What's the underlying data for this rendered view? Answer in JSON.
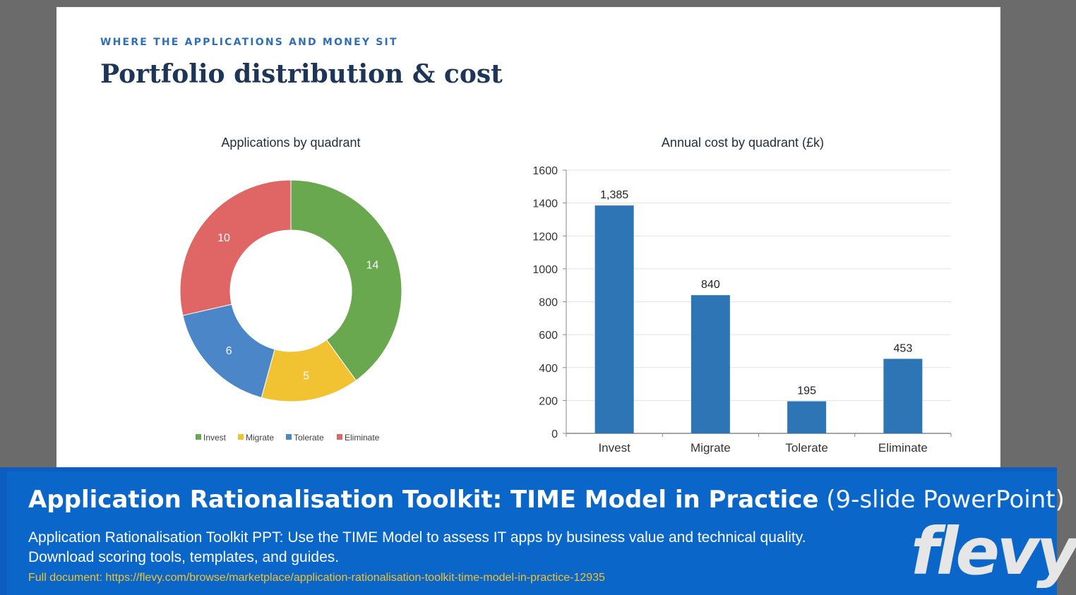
{
  "slide": {
    "kicker": "WHERE THE APPLICATIONS AND MONEY SIT",
    "title": "Portfolio distribution & cost"
  },
  "chart_data": [
    {
      "type": "pie",
      "variant": "donut",
      "title": "Applications by quadrant",
      "categories": [
        "Invest",
        "Migrate",
        "Tolerate",
        "Eliminate"
      ],
      "values": [
        14,
        5,
        6,
        10
      ],
      "colors": [
        "#6aa84f",
        "#f1c232",
        "#4a86c8",
        "#e06666"
      ],
      "legend": "bottom"
    },
    {
      "type": "bar",
      "title": "Annual cost by quadrant (£k)",
      "categories": [
        "Invest",
        "Migrate",
        "Tolerate",
        "Eliminate"
      ],
      "values": [
        1385,
        840,
        195,
        453
      ],
      "data_labels": [
        "1,385",
        "840",
        "195",
        "453"
      ],
      "ylim": [
        0,
        1600
      ],
      "yticks": [
        0,
        200,
        400,
        600,
        800,
        1000,
        1200,
        1400,
        1600
      ],
      "grid": true,
      "color": "#2e75b6"
    }
  ],
  "banner": {
    "title_bold": "Application Rationalisation Toolkit: TIME Model in Practice",
    "title_light": "(9-slide PowerPoint)",
    "desc_line1": "Application Rationalisation Toolkit PPT: Use the TIME Model to assess IT apps by business value and technical quality.",
    "desc_line2": "Download scoring tools, templates, and guides.",
    "link": "Full document: https://flevy.com/browse/marketplace/application-rationalisation-toolkit-time-model-in-practice-12935",
    "logo": "flevy"
  }
}
